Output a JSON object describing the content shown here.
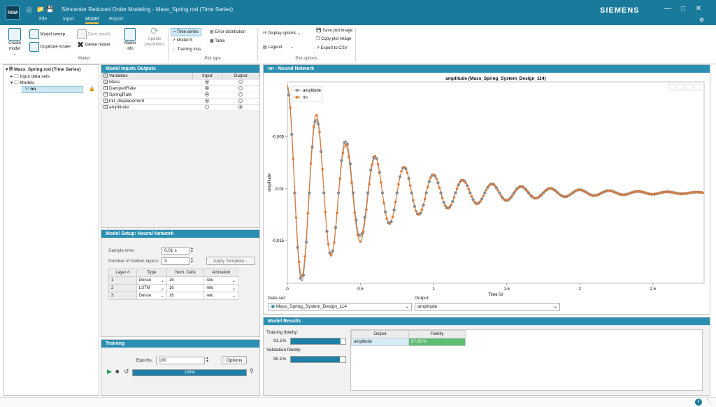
{
  "app": {
    "title": "Simcenter Reduced Order Modeling - Mass_Spring.rod (Time Series)",
    "logo": "ROM",
    "brand": "SIEMENS",
    "menus": [
      {
        "label": "File",
        "active": false
      },
      {
        "label": "Input",
        "active": false
      },
      {
        "label": "Model",
        "active": true
      },
      {
        "label": "Export",
        "active": false
      }
    ]
  },
  "ribbon": {
    "create_model": "Create model",
    "model_sweep": "Model sweep",
    "duplicate_model": "Duplicate model",
    "save_model": "Save model",
    "delete_model": "Delete model",
    "model_info": "Model info",
    "update_predictions": "Update predictions",
    "group_model": "Model",
    "time_series": "Time series",
    "model_fit": "Model fit",
    "training_loss": "Training loss",
    "error_distribution": "Error distribution",
    "table": "Table",
    "group_plot_type": "Plot type",
    "display_options": "Display options",
    "legend": "Legend",
    "save_plot_image": "Save plot image",
    "copy_plot_image": "Copy plot image",
    "export_csv": "Export to CSV",
    "group_plot_options": "Plot options"
  },
  "tree": {
    "root": "Mass_Spring.rod (Time Series)",
    "input_data_sets": "Input data sets",
    "models": "Models",
    "model_nn": "nn"
  },
  "inputs_outputs": {
    "header": "Model Inputs Outputs",
    "col_variables": "Variables",
    "col_input": "Input",
    "col_output": "Output",
    "rows": [
      {
        "name": "Mass",
        "input": true,
        "output": false
      },
      {
        "name": "DampedRate",
        "input": true,
        "output": false
      },
      {
        "name": "SpringRate",
        "input": true,
        "output": false
      },
      {
        "name": "init_displacement",
        "input": true,
        "output": false
      },
      {
        "name": "amplitude",
        "input": false,
        "output": true
      }
    ]
  },
  "setup": {
    "header": "Model Setup: Neural Network",
    "sample_time_label": "Sample time:",
    "sample_time_value": "0.01 s",
    "hidden_layers_label": "Number of hidden layers:",
    "hidden_layers_value": "3",
    "apply_template": "Apply Template...",
    "cols": [
      "Layer #",
      "Type",
      "Num. Cells",
      "Activation"
    ],
    "layers": [
      {
        "n": "1",
        "type": "Dense",
        "cells": "16",
        "act": "relu"
      },
      {
        "n": "2",
        "type": "LSTM",
        "cells": "16",
        "act": "relu"
      },
      {
        "n": "3",
        "type": "Dense",
        "cells": "16",
        "act": "relu"
      }
    ]
  },
  "training": {
    "header": "Training",
    "epochs_label": "Epochs:",
    "epochs_value": "100",
    "options": "Options",
    "progress_label": "100%",
    "progress": 1.0
  },
  "plot_panel": {
    "header": "nn - Neural Network",
    "data_set_label": "Data set:",
    "data_set_value": "Mass_Spring_System_Design_114",
    "output_label": "Output:",
    "output_value": "amplitude"
  },
  "chart_data": {
    "type": "line",
    "title": "amplitude (Mass_Spring_System_Design_114)",
    "xlabel": "Time [s]",
    "ylabel": "amplitude",
    "xlim": [
      0,
      2.85
    ],
    "ylim": [
      -0.0191,
      0.0003
    ],
    "xticks": [
      "0",
      "0.5",
      "1",
      "1.5",
      "2",
      "2.5"
    ],
    "xtick_values": [
      0,
      0.5,
      1,
      1.5,
      2,
      2.5
    ],
    "yticks": [
      "-0.005",
      "-0.01",
      "-0.015"
    ],
    "ytick_values": [
      -0.005,
      -0.01,
      -0.015
    ],
    "legend_position": "top-left",
    "series": [
      {
        "name": "amplitude",
        "color": "#8c8c8c",
        "marker": "circle"
      },
      {
        "name": "nn",
        "color": "#e07b39",
        "marker": "circle"
      }
    ],
    "signal": {
      "final_value": -0.0104,
      "initial_amplitude": 0.0101,
      "decay_per_s": 1.75,
      "period_s": 0.2
    }
  },
  "results": {
    "header": "Model Results",
    "training_fidelity_label": "Training fidelity:",
    "training_fidelity_value": "91.1%",
    "training_fidelity": 0.911,
    "validation_fidelity_label": "Validation fidelity:",
    "validation_fidelity_value": "90.1%",
    "validation_fidelity": 0.901,
    "table_cols": [
      "Output",
      "Fidelity"
    ],
    "table_rows": [
      {
        "output": "amplitude",
        "fidelity": "97.08 %"
      }
    ]
  },
  "colors": {
    "accent": "#1a7a9c",
    "panel_header": "#2a8fb3",
    "fidelity_green": "#5dbb72"
  }
}
